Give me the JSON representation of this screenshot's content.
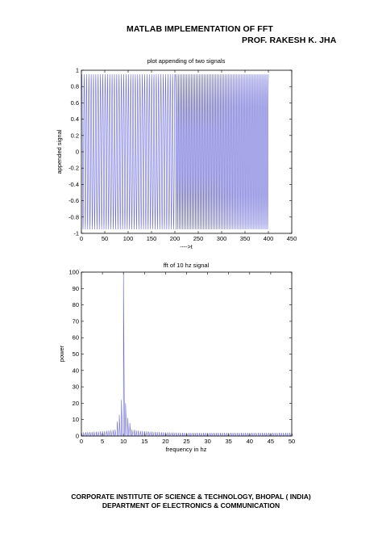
{
  "header": {
    "title": "MATLAB IMPLEMENTATION OF FFT",
    "author": "PROF. RAKESH K. JHA"
  },
  "footer": {
    "line1": "CORPORATE INSTITUTE OF SCIENCE & TECHNOLOGY, BHOPAL ( INDIA)",
    "line2": "DEPARTMENT OF ELECTRONICS & COMMUNICATION"
  },
  "chart_data": [
    {
      "type": "line",
      "title": "plot appending of two signals",
      "xlabel": "---->t",
      "ylabel": "appended signal",
      "xlim": [
        0,
        450
      ],
      "ylim": [
        -1,
        1
      ],
      "xticks": [
        0,
        50,
        100,
        150,
        200,
        250,
        300,
        350,
        400,
        450
      ],
      "yticks": [
        -1,
        -0.8,
        -0.6,
        -0.4,
        -0.2,
        0,
        0.2,
        0.4,
        0.6,
        0.8,
        1
      ],
      "series_color": "#6a6ad8",
      "series": [
        {
          "segment": "low-frequency",
          "t_range": [
            1,
            200
          ],
          "cycles": 40,
          "peak": 0.95
        },
        {
          "segment": "high-frequency",
          "t_range": [
            201,
            400
          ],
          "cycles": 58,
          "peak": 0.95
        }
      ],
      "grid": false
    },
    {
      "type": "line",
      "title": "fft of 10 hz signal",
      "xlabel": "frequency in hz",
      "ylabel": "power",
      "xlim": [
        0,
        50
      ],
      "ylim": [
        0,
        100
      ],
      "xticks": [
        0,
        5,
        10,
        15,
        20,
        25,
        30,
        35,
        40,
        45,
        50
      ],
      "yticks": [
        0,
        10,
        20,
        30,
        40,
        50,
        60,
        70,
        80,
        90,
        100
      ],
      "series_color": "#6a6ad8",
      "peak": {
        "x": 10,
        "y": 100
      },
      "sidelobes": [
        {
          "x": 9.5,
          "y": 22
        },
        {
          "x": 10.5,
          "y": 20
        },
        {
          "x": 9,
          "y": 13
        },
        {
          "x": 11,
          "y": 11
        },
        {
          "x": 8.5,
          "y": 9
        },
        {
          "x": 11.5,
          "y": 8
        }
      ],
      "noise_floor": 2,
      "grid": false
    }
  ]
}
